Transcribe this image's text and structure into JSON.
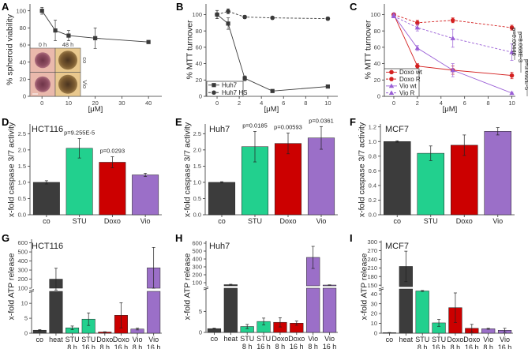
{
  "chart_data": [
    {
      "panel": "A",
      "type": "line",
      "xlabel": "[μM]",
      "ylabel": "% spheroid viability",
      "xlim": [
        -4.5,
        45
      ],
      "ylim": [
        0,
        108
      ],
      "xticks": [
        "0",
        "10",
        "20",
        "30",
        "40"
      ],
      "yticks": [
        "0",
        "20",
        "40",
        "60",
        "80",
        "100"
      ],
      "series": [
        {
          "x": [
            0,
            5,
            10,
            20,
            40
          ],
          "y": [
            100,
            77,
            71,
            68,
            63.5
          ],
          "err": [
            4,
            12,
            6,
            12,
            1
          ],
          "color": "#3a3a3a",
          "marker": "square",
          "dashed": false
        }
      ],
      "inset": {
        "columns": [
          "0 h",
          "48 h"
        ],
        "rows": [
          "co",
          "Vio"
        ]
      }
    },
    {
      "panel": "B",
      "type": "line",
      "xlabel": "[μM]",
      "ylabel": "% MTT turnover",
      "xlim": [
        -1,
        10.9
      ],
      "ylim": [
        0,
        113
      ],
      "xticks": [
        "0",
        "2",
        "4",
        "6",
        "8",
        "10"
      ],
      "yticks": [
        "0",
        "20",
        "40",
        "60",
        "80",
        "100"
      ],
      "legend": "bottom-left",
      "series": [
        {
          "name": "Huh7",
          "x": [
            0,
            1,
            2.5,
            5,
            10
          ],
          "y": [
            100,
            89,
            22,
            6.5,
            12
          ],
          "err": [
            5,
            7,
            3,
            1,
            1
          ],
          "color": "#3a3a3a",
          "marker": "square",
          "dashed": false
        },
        {
          "name": "Huh7 HS",
          "x": [
            0,
            1,
            2.5,
            5,
            10
          ],
          "y": [
            100,
            104,
            97,
            96,
            95
          ],
          "err": [
            5,
            3,
            2,
            1,
            2
          ],
          "color": "#3a3a3a",
          "marker": "circle",
          "dashed": true
        }
      ]
    },
    {
      "panel": "C",
      "type": "line",
      "xlabel": "[μM]",
      "ylabel": "% MTT turnover",
      "xlim": [
        -0.8,
        10.3
      ],
      "ylim": [
        0,
        113
      ],
      "xticks": [
        "0",
        "2",
        "4",
        "6",
        "8",
        "10"
      ],
      "yticks": [
        "0",
        "20",
        "40",
        "60",
        "80",
        "100"
      ],
      "legend": "bottom-left",
      "series": [
        {
          "name": "Doxo wt",
          "x": [
            0,
            2,
            5,
            10
          ],
          "y": [
            100,
            37,
            32,
            25.5
          ],
          "err": [
            2,
            3,
            5,
            4
          ],
          "color": "#d42020",
          "marker": "circle",
          "dashed": false
        },
        {
          "name": "Doxo R",
          "x": [
            0,
            2,
            5,
            10
          ],
          "y": [
            100,
            90,
            93,
            84
          ],
          "err": [
            2,
            3,
            3,
            3
          ],
          "color": "#d42020",
          "marker": "circle",
          "dashed": true
        },
        {
          "name": "Vio wt",
          "x": [
            0,
            2,
            5,
            10
          ],
          "y": [
            99,
            59,
            32,
            4
          ],
          "err": [
            3,
            3,
            8,
            1
          ],
          "color": "#9a5fd6",
          "marker": "triangle",
          "dashed": false
        },
        {
          "name": "Vio R",
          "x": [
            0,
            2,
            5,
            10
          ],
          "y": [
            98,
            84,
            71,
            54
          ],
          "err": [
            2,
            4,
            11,
            10
          ],
          "color": "#9a5fd6",
          "marker": "triangle",
          "dashed": true
        }
      ],
      "annotations": [
        "p=0.00446",
        "p=8.068E-3",
        "p=3.692E-5"
      ]
    },
    {
      "panel": "D",
      "type": "bar",
      "title": "HCT116",
      "ylabel": "x-fold caspase 3/7 activity",
      "categories": [
        "co",
        "STU",
        "Doxo",
        "Vio"
      ],
      "values": [
        1.0,
        2.05,
        1.62,
        1.23
      ],
      "err": [
        0.05,
        0.3,
        0.17,
        0.05
      ],
      "colors": [
        "#3c3c3c",
        "#22d08e",
        "#cc0000",
        "#9b6fc8"
      ],
      "ylim": [
        0,
        2.8
      ],
      "yticks": [
        "0.0",
        "0.5",
        "1.0",
        "1.5",
        "2.0",
        "2.5"
      ],
      "annotations": [
        {
          "category": 1,
          "text": "p=9.255E-5"
        },
        {
          "category": 2,
          "text": "p=0.0293"
        }
      ]
    },
    {
      "panel": "E",
      "type": "bar",
      "title": "Huh7",
      "ylabel": "x-fold caspase 3/7 activity",
      "categories": [
        "co",
        "STU",
        "Doxo",
        "Vio"
      ],
      "values": [
        1.0,
        2.1,
        2.2,
        2.37
      ],
      "err": [
        0.02,
        0.47,
        0.32,
        0.35
      ],
      "colors": [
        "#3c3c3c",
        "#22d08e",
        "#cc0000",
        "#9b6fc8"
      ],
      "ylim": [
        0,
        2.8
      ],
      "yticks": [
        "0.0",
        "0.5",
        "1.0",
        "1.5",
        "2.0",
        "2.5"
      ],
      "annotations": [
        {
          "category": 1,
          "text": "p=0.0185"
        },
        {
          "category": 2,
          "text": "p=0.00593"
        },
        {
          "category": 3,
          "text": "p=0.0361"
        }
      ]
    },
    {
      "panel": "F",
      "type": "bar",
      "title": "MCF7",
      "ylabel": "x-fold caspase 3/7 activity",
      "categories": [
        "co",
        "STU",
        "Doxo",
        "Vio"
      ],
      "values": [
        1.0,
        0.84,
        0.95,
        1.14
      ],
      "err": [
        0.01,
        0.1,
        0.14,
        0.05
      ],
      "colors": [
        "#3c3c3c",
        "#22d08e",
        "#cc0000",
        "#9b6fc8"
      ],
      "ylim": [
        0,
        1.24
      ],
      "yticks": [
        "0.0",
        "0.2",
        "0.4",
        "0.6",
        "0.8",
        "1.0",
        "1.2"
      ]
    },
    {
      "panel": "G",
      "type": "bar",
      "title": "HCT116",
      "ylabel": "x-fold ATP release",
      "broken_axis": true,
      "categories": [
        "co",
        "heat",
        "STU\n8 h",
        "STU\n16 h",
        "Doxo\n8 h",
        "Doxo\n16 h",
        "Vio\n8 h",
        "Vio\n16 h"
      ],
      "values": [
        1,
        200,
        1.8,
        4.7,
        0.4,
        6,
        1.4,
        325
      ],
      "err": [
        0.2,
        120,
        0.6,
        2.1,
        0.1,
        4.2,
        0.3,
        225
      ],
      "colors": [
        "#3c3c3c",
        "#3c3c3c",
        "#22d08e",
        "#22d08e",
        "#cc0000",
        "#cc0000",
        "#9b6fc8",
        "#9b6fc8"
      ],
      "y_segments": [
        [
          0,
          14
        ],
        [
          100,
          640
        ]
      ],
      "yticks": [
        [
          "0",
          "5",
          "10"
        ],
        [
          "100",
          "200",
          "300",
          "400",
          "500",
          "600"
        ]
      ]
    },
    {
      "panel": "H",
      "type": "bar",
      "title": "Huh7",
      "ylabel": "x-fold ATP release",
      "broken_axis": true,
      "categories": [
        "co",
        "heat",
        "STU\n8 h",
        "STU\n16 h",
        "Doxo\n8 h",
        "Doxo\n16 h",
        "Vio\n8 h",
        "Vio\n16 h"
      ],
      "values": [
        0.9,
        75,
        1.4,
        2.6,
        2.4,
        2.2,
        420,
        70
      ],
      "err": [
        0.1,
        5,
        0.5,
        0.8,
        1.1,
        0.5,
        140,
        3
      ],
      "colors": [
        "#3c3c3c",
        "#3c3c3c",
        "#22d08e",
        "#22d08e",
        "#cc0000",
        "#cc0000",
        "#9b6fc8",
        "#9b6fc8"
      ],
      "y_segments": [
        [
          0,
          10.5
        ],
        [
          60,
          630
        ]
      ],
      "yticks": [
        [
          "0",
          "5"
        ],
        [
          "100",
          "200",
          "300",
          "400",
          "500",
          "600"
        ]
      ]
    },
    {
      "panel": "I",
      "type": "bar",
      "title": "MCF7",
      "ylabel": "x-fold ATP release",
      "broken_axis": true,
      "categories": [
        "co",
        "heat",
        "STU\n8 h",
        "STU\n16 h",
        "Doxo\n8 h",
        "Doxo\n16 h",
        "Vio\n8 h",
        "Vio\n16 h"
      ],
      "values": [
        0.5,
        215,
        43,
        10.5,
        26,
        5,
        4.5,
        3
      ],
      "err": [
        0.2,
        53,
        0.5,
        3.5,
        15,
        4,
        0.5,
        2
      ],
      "colors": [
        "#3c3c3c",
        "#3c3c3c",
        "#22d08e",
        "#22d08e",
        "#cc0000",
        "#cc0000",
        "#9b6fc8",
        "#9b6fc8"
      ],
      "y_segments": [
        [
          0,
          45
        ],
        [
          145,
          305
        ]
      ],
      "yticks": [
        [
          "0",
          "10",
          "20",
          "30",
          "40"
        ],
        [
          "150",
          "180",
          "210",
          "240",
          "270",
          "300"
        ]
      ]
    }
  ]
}
